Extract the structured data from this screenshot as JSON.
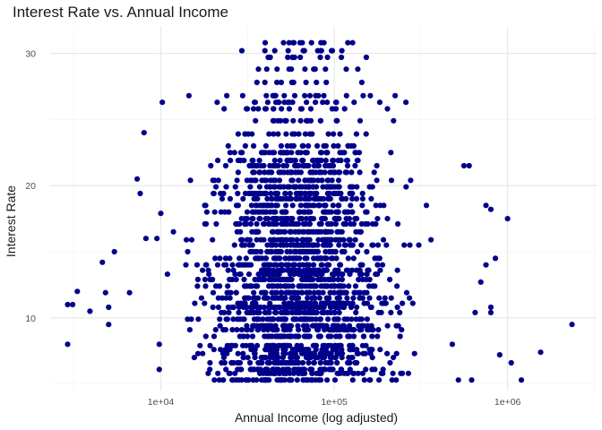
{
  "chart_data": {
    "type": "scatter",
    "title": "Interest Rate vs. Annual Income",
    "xlabel": "Annual Income (log adjusted)",
    "ylabel": "Interest Rate",
    "x_scale": "log10",
    "x_ticks": [
      {
        "value": 10000,
        "label": "1e+04"
      },
      {
        "value": 100000,
        "label": "1e+05"
      },
      {
        "value": 1000000,
        "label": "1e+06"
      }
    ],
    "y_ticks": [
      {
        "value": 10,
        "label": "10"
      },
      {
        "value": 20,
        "label": "20"
      },
      {
        "value": 30,
        "label": "30"
      }
    ],
    "xlim": [
      2300,
      3300000
    ],
    "ylim": [
      4.5,
      32
    ],
    "grid": true,
    "point_color": "#00008B",
    "distinct_rates": [
      5.3,
      5.8,
      6.1,
      6.6,
      7.0,
      7.3,
      7.6,
      7.9,
      8.6,
      9.1,
      9.4,
      9.9,
      10.4,
      10.8,
      11.1,
      11.5,
      11.9,
      12.4,
      12.9,
      13.3,
      13.6,
      14.0,
      14.5,
      15.0,
      15.5,
      15.9,
      16.5,
      17.1,
      17.5,
      18.0,
      18.5,
      19.0,
      19.4,
      19.9,
      20.4,
      21.0,
      21.5,
      21.9,
      22.5,
      23.0,
      23.9,
      24.9,
      25.8,
      26.3,
      26.8,
      27.8,
      28.8,
      29.7,
      30.2,
      30.8
    ],
    "cluster_points": [
      {
        "x": 2900,
        "y": 8.0
      },
      {
        "x": 2900,
        "y": 11.0
      },
      {
        "x": 3100,
        "y": 11.0
      },
      {
        "x": 3300,
        "y": 12.0
      },
      {
        "x": 3900,
        "y": 10.5
      },
      {
        "x": 4600,
        "y": 14.2
      },
      {
        "x": 4800,
        "y": 11.9
      },
      {
        "x": 5000,
        "y": 10.8
      },
      {
        "x": 5000,
        "y": 9.5
      },
      {
        "x": 5400,
        "y": 15.0
      },
      {
        "x": 6600,
        "y": 11.9
      },
      {
        "x": 7300,
        "y": 20.5
      },
      {
        "x": 7600,
        "y": 19.4
      },
      {
        "x": 8000,
        "y": 24.0
      },
      {
        "x": 8200,
        "y": 16.0
      },
      {
        "x": 9500,
        "y": 16.0
      },
      {
        "x": 9800,
        "y": 8.0
      },
      {
        "x": 9800,
        "y": 6.1
      },
      {
        "x": 10000,
        "y": 17.9
      },
      {
        "x": 10200,
        "y": 26.3
      },
      {
        "x": 480000,
        "y": 8.0
      },
      {
        "x": 520000,
        "y": 5.3
      },
      {
        "x": 560000,
        "y": 21.5
      },
      {
        "x": 600000,
        "y": 21.5
      },
      {
        "x": 620000,
        "y": 5.3
      },
      {
        "x": 650000,
        "y": 10.4
      },
      {
        "x": 700000,
        "y": 12.7
      },
      {
        "x": 750000,
        "y": 18.5
      },
      {
        "x": 750000,
        "y": 14.0
      },
      {
        "x": 800000,
        "y": 10.8
      },
      {
        "x": 800000,
        "y": 18.2
      },
      {
        "x": 800000,
        "y": 10.4
      },
      {
        "x": 850000,
        "y": 14.5
      },
      {
        "x": 900000,
        "y": 7.2
      },
      {
        "x": 1000000,
        "y": 17.5
      },
      {
        "x": 1050000,
        "y": 6.6
      },
      {
        "x": 1200000,
        "y": 5.3
      },
      {
        "x": 1550000,
        "y": 7.4
      },
      {
        "x": 2350000,
        "y": 9.5
      }
    ]
  }
}
